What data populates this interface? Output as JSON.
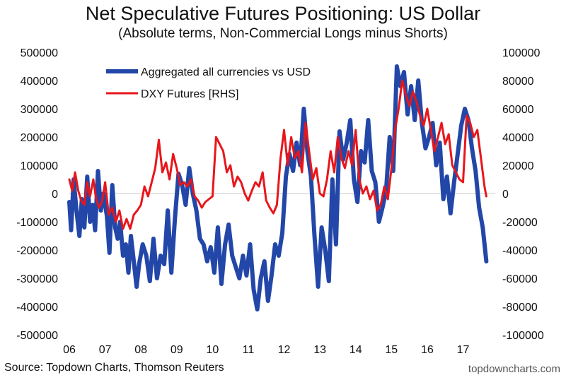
{
  "chart_data": {
    "type": "line",
    "title": "Net Speculative Futures Positioning: US Dollar",
    "subtitle": "(Absolute terms, Non-Commercial Longs minus Shorts)",
    "x_ticks": [
      "06",
      "07",
      "08",
      "09",
      "10",
      "11",
      "12",
      "13",
      "14",
      "15",
      "16",
      "17"
    ],
    "xlim": [
      2006.0,
      2017.9
    ],
    "y_left": {
      "ylim": [
        -500000,
        500000
      ],
      "ticks": [
        "500000",
        "400000",
        "300000",
        "200000",
        "100000",
        "0",
        "-100000",
        "-200000",
        "-300000",
        "-400000",
        "-500000"
      ]
    },
    "y_right": {
      "ylim": [
        -100000,
        100000
      ],
      "ticks": [
        "100000",
        "80000",
        "60000",
        "40000",
        "20000",
        "0",
        "-20000",
        "-40000",
        "-60000",
        "-80000",
        "-100000"
      ]
    },
    "legend_position": "top-left",
    "series": [
      {
        "name": "Aggregated all currencies vs USD",
        "axis": "left",
        "color": "#2347a8",
        "x": [
          2006.0,
          2006.05,
          2006.12,
          2006.2,
          2006.28,
          2006.35,
          2006.42,
          2006.5,
          2006.58,
          2006.65,
          2006.72,
          2006.8,
          2006.88,
          2006.95,
          2007.05,
          2007.12,
          2007.2,
          2007.28,
          2007.35,
          2007.42,
          2007.5,
          2007.58,
          2007.65,
          2007.72,
          2007.8,
          2007.88,
          2007.95,
          2008.05,
          2008.15,
          2008.25,
          2008.35,
          2008.45,
          2008.55,
          2008.65,
          2008.75,
          2008.85,
          2008.95,
          2009.05,
          2009.15,
          2009.25,
          2009.35,
          2009.45,
          2009.55,
          2009.65,
          2009.75,
          2009.85,
          2009.95,
          2010.05,
          2010.15,
          2010.25,
          2010.35,
          2010.45,
          2010.55,
          2010.65,
          2010.75,
          2010.85,
          2010.95,
          2011.05,
          2011.15,
          2011.25,
          2011.35,
          2011.45,
          2011.55,
          2011.65,
          2011.75,
          2011.85,
          2011.95,
          2012.05,
          2012.15,
          2012.25,
          2012.35,
          2012.45,
          2012.55,
          2012.65,
          2012.75,
          2012.85,
          2012.95,
          2013.05,
          2013.15,
          2013.25,
          2013.35,
          2013.45,
          2013.55,
          2013.65,
          2013.75,
          2013.85,
          2013.95,
          2014.05,
          2014.15,
          2014.25,
          2014.35,
          2014.45,
          2014.55,
          2014.65,
          2014.75,
          2014.85,
          2014.95,
          2015.05,
          2015.15,
          2015.25,
          2015.35,
          2015.45,
          2015.55,
          2015.65,
          2015.75,
          2015.85,
          2015.95,
          2016.05,
          2016.15,
          2016.25,
          2016.35,
          2016.45,
          2016.55,
          2016.65,
          2016.75,
          2016.85,
          2016.95,
          2017.05,
          2017.15,
          2017.25,
          2017.35,
          2017.45,
          2017.55,
          2017.65
        ],
        "values": [
          -30000,
          -130000,
          50000,
          -60000,
          -150000,
          -20000,
          -120000,
          60000,
          -100000,
          -40000,
          -130000,
          80000,
          -60000,
          0,
          -80000,
          -210000,
          30000,
          -120000,
          -160000,
          -100000,
          -220000,
          -180000,
          -280000,
          -150000,
          -240000,
          -330000,
          -250000,
          -180000,
          -220000,
          -310000,
          -160000,
          -300000,
          -220000,
          -250000,
          -60000,
          -280000,
          -90000,
          70000,
          30000,
          -40000,
          90000,
          0,
          -60000,
          -160000,
          -180000,
          -240000,
          -190000,
          -280000,
          -120000,
          -320000,
          -180000,
          -110000,
          -220000,
          -260000,
          -300000,
          -220000,
          -290000,
          -180000,
          -340000,
          -410000,
          -300000,
          -240000,
          -380000,
          -290000,
          -180000,
          -220000,
          -140000,
          60000,
          140000,
          80000,
          180000,
          100000,
          300000,
          150000,
          60000,
          -150000,
          -330000,
          -120000,
          -200000,
          -310000,
          50000,
          -180000,
          220000,
          120000,
          180000,
          260000,
          50000,
          -30000,
          150000,
          110000,
          260000,
          80000,
          40000,
          -100000,
          -50000,
          10000,
          200000,
          80000,
          450000,
          380000,
          430000,
          280000,
          380000,
          260000,
          400000,
          250000,
          160000,
          200000,
          250000,
          100000,
          180000,
          -20000,
          60000,
          -70000,
          40000,
          140000,
          240000,
          300000,
          260000,
          160000,
          80000,
          -50000,
          -120000,
          -240000
        ]
      },
      {
        "name": "DXY Futures [RHS]",
        "axis": "right",
        "color": "#e8161b",
        "x": [
          2006.0,
          2006.08,
          2006.16,
          2006.25,
          2006.33,
          2006.42,
          2006.5,
          2006.58,
          2006.67,
          2006.75,
          2006.83,
          2006.92,
          2007.0,
          2007.1,
          2007.2,
          2007.3,
          2007.4,
          2007.5,
          2007.6,
          2007.7,
          2007.8,
          2007.9,
          2008.0,
          2008.1,
          2008.2,
          2008.3,
          2008.4,
          2008.5,
          2008.6,
          2008.7,
          2008.8,
          2008.9,
          2009.0,
          2009.1,
          2009.2,
          2009.3,
          2009.4,
          2009.5,
          2009.6,
          2009.7,
          2009.8,
          2009.9,
          2010.0,
          2010.1,
          2010.2,
          2010.3,
          2010.4,
          2010.5,
          2010.6,
          2010.7,
          2010.8,
          2010.9,
          2011.0,
          2011.1,
          2011.2,
          2011.3,
          2011.4,
          2011.5,
          2011.6,
          2011.7,
          2011.8,
          2011.9,
          2012.0,
          2012.1,
          2012.2,
          2012.3,
          2012.4,
          2012.5,
          2012.6,
          2012.7,
          2012.8,
          2012.9,
          2013.0,
          2013.1,
          2013.2,
          2013.3,
          2013.4,
          2013.5,
          2013.6,
          2013.7,
          2013.8,
          2013.9,
          2014.0,
          2014.1,
          2014.2,
          2014.3,
          2014.4,
          2014.5,
          2014.6,
          2014.7,
          2014.8,
          2014.9,
          2015.0,
          2015.1,
          2015.2,
          2015.3,
          2015.4,
          2015.5,
          2015.6,
          2015.7,
          2015.8,
          2015.9,
          2016.0,
          2016.1,
          2016.2,
          2016.3,
          2016.4,
          2016.5,
          2016.6,
          2016.7,
          2016.8,
          2016.9,
          2017.0,
          2017.1,
          2017.2,
          2017.3,
          2017.4,
          2017.5,
          2017.6,
          2017.65
        ],
        "values": [
          10000,
          2000,
          15000,
          2000,
          -5000,
          -8000,
          8000,
          -2000,
          10000,
          -4000,
          -10000,
          -5000,
          8000,
          -15000,
          -10000,
          -20000,
          -12000,
          -25000,
          -18000,
          -25000,
          -15000,
          -12000,
          -8000,
          5000,
          -2000,
          8000,
          18000,
          38000,
          15000,
          22000,
          10000,
          28000,
          18000,
          6000,
          8000,
          5000,
          10000,
          -2000,
          -5000,
          -10000,
          -6000,
          -4000,
          -2000,
          40000,
          35000,
          30000,
          15000,
          20000,
          5000,
          12000,
          8000,
          0,
          -5000,
          2000,
          8000,
          5000,
          15000,
          -5000,
          -10000,
          -14000,
          -8000,
          25000,
          45000,
          20000,
          40000,
          25000,
          30000,
          15000,
          50000,
          30000,
          10000,
          18000,
          0,
          -2000,
          10000,
          30000,
          15000,
          40000,
          25000,
          18000,
          30000,
          20000,
          45000,
          10000,
          0,
          5000,
          -4000,
          2000,
          -12000,
          -8000,
          5000,
          -4000,
          18000,
          45000,
          60000,
          80000,
          70000,
          62000,
          72000,
          65000,
          55000,
          48000,
          60000,
          45000,
          30000,
          40000,
          50000,
          35000,
          42000,
          20000,
          15000,
          10000,
          8000,
          55000,
          50000,
          40000,
          45000,
          25000,
          5000,
          -2000
        ]
      }
    ]
  },
  "source": "Source: Topdown Charts, Thomson Reuters",
  "watermark": "topdowncharts.com"
}
